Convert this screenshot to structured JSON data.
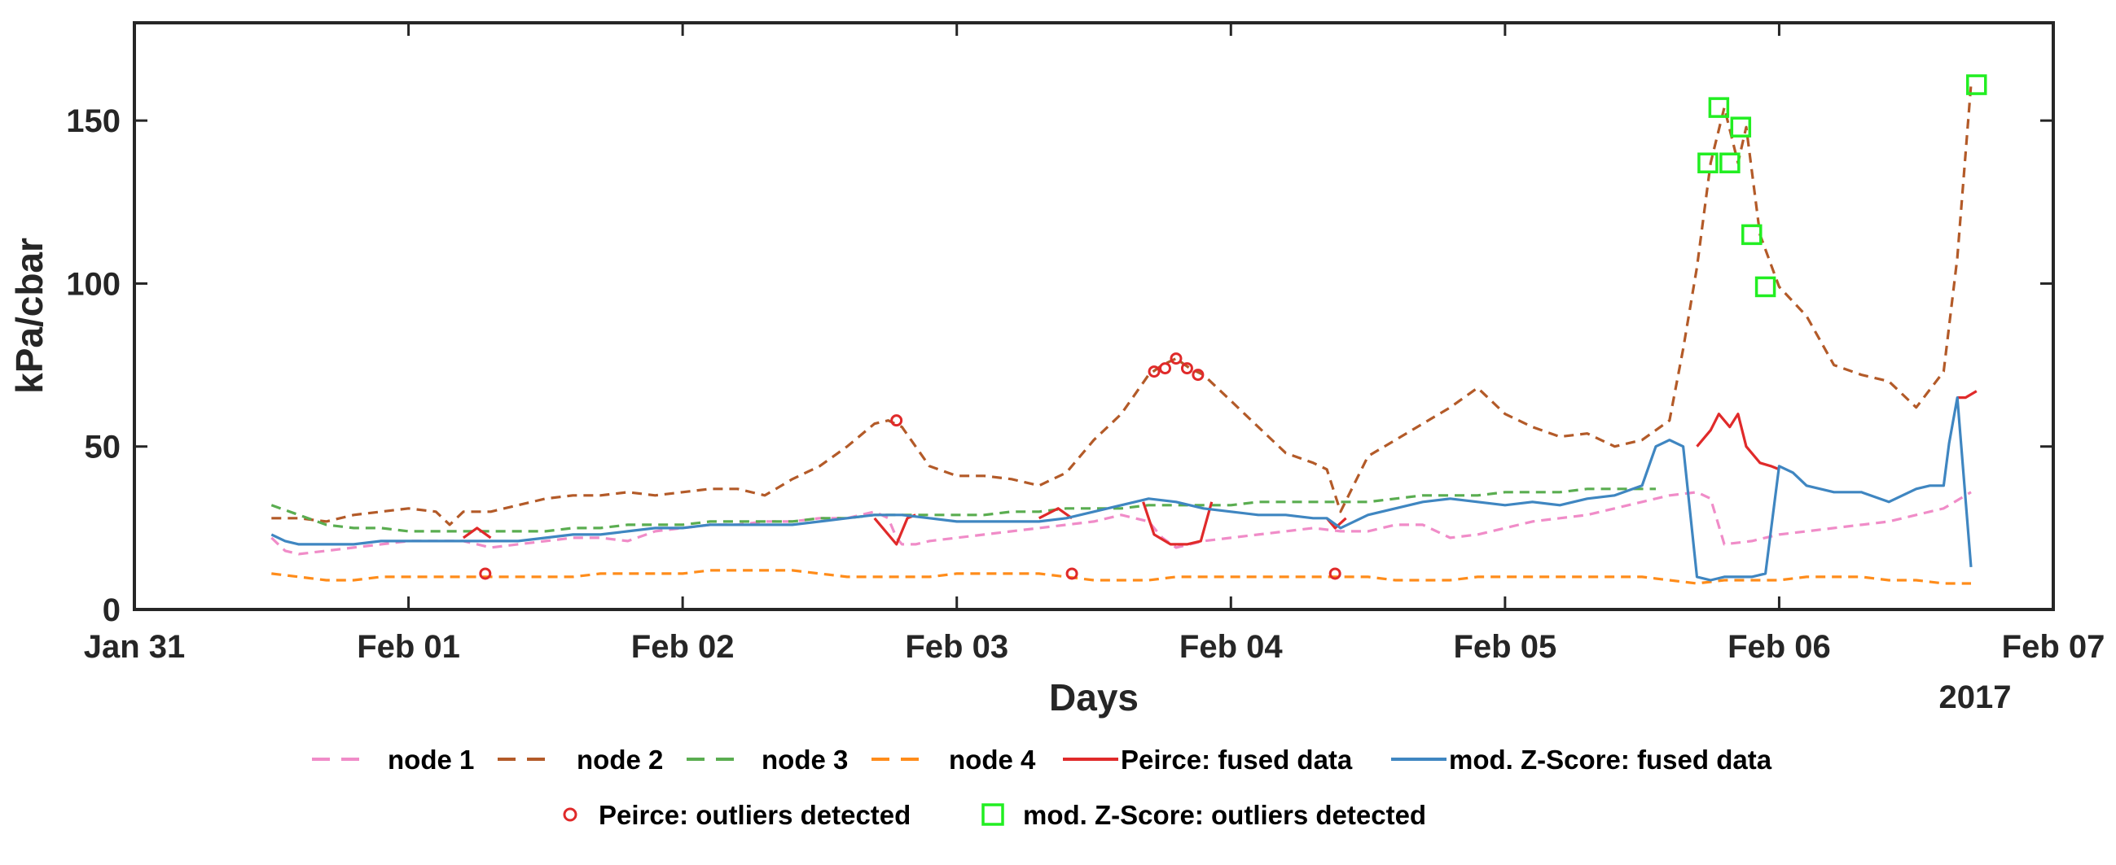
{
  "chart_data": {
    "type": "line",
    "xlabel": "Days",
    "ylabel": "kPa/cbar",
    "x_axis": {
      "type": "date",
      "range": [
        "2017-01-31",
        "2017-02-07"
      ],
      "tick_labels": [
        "Jan 31",
        "Feb 01",
        "Feb 02",
        "Feb 03",
        "Feb 04",
        "Feb 05",
        "Feb 06",
        "Feb 07"
      ],
      "year_label": "2017"
    },
    "y_axis": {
      "range": [
        0,
        180
      ],
      "ticks": [
        0,
        50,
        100,
        150
      ]
    },
    "grid": false,
    "legend": {
      "position": "bottom"
    },
    "series": [
      {
        "name": "node 1",
        "style": "dashed",
        "color": "#f08cc8",
        "x": [
          0.5,
          0.55,
          0.6,
          0.7,
          0.8,
          0.9,
          1.0,
          1.1,
          1.2,
          1.3,
          1.4,
          1.5,
          1.6,
          1.7,
          1.8,
          1.9,
          2.0,
          2.1,
          2.2,
          2.3,
          2.4,
          2.5,
          2.6,
          2.7,
          2.75,
          2.78,
          2.8,
          2.85,
          2.9,
          3.0,
          3.1,
          3.2,
          3.3,
          3.4,
          3.5,
          3.6,
          3.7,
          3.75,
          3.8,
          3.85,
          3.9,
          4.0,
          4.1,
          4.2,
          4.3,
          4.4,
          4.5,
          4.6,
          4.7,
          4.8,
          4.9,
          5.0,
          5.1,
          5.2,
          5.3,
          5.4,
          5.5,
          5.6,
          5.7,
          5.75,
          5.8,
          5.9,
          6.0,
          6.1,
          6.2,
          6.3,
          6.4,
          6.5,
          6.6,
          6.7
        ],
        "y": [
          22,
          18,
          17,
          18,
          19,
          20,
          21,
          21,
          21,
          19,
          20,
          21,
          22,
          22,
          21,
          24,
          25,
          26,
          26,
          27,
          27,
          28,
          28,
          30,
          28,
          22,
          20,
          20,
          21,
          22,
          23,
          24,
          25,
          26,
          27,
          29,
          27,
          22,
          19,
          20,
          21,
          22,
          23,
          24,
          25,
          24,
          24,
          26,
          26,
          22,
          23,
          25,
          27,
          28,
          29,
          31,
          33,
          35,
          36,
          34,
          20,
          21,
          23,
          24,
          25,
          26,
          27,
          29,
          31,
          36
        ]
      },
      {
        "name": "node 2",
        "style": "dashed",
        "color": "#b35a28",
        "x": [
          0.5,
          0.6,
          0.7,
          0.8,
          0.9,
          1.0,
          1.1,
          1.15,
          1.2,
          1.3,
          1.4,
          1.5,
          1.6,
          1.7,
          1.8,
          1.9,
          2.0,
          2.1,
          2.2,
          2.3,
          2.4,
          2.5,
          2.6,
          2.7,
          2.75,
          2.8,
          2.85,
          2.9,
          3.0,
          3.1,
          3.2,
          3.3,
          3.4,
          3.5,
          3.6,
          3.7,
          3.75,
          3.8,
          3.85,
          3.9,
          4.0,
          4.1,
          4.2,
          4.3,
          4.35,
          4.4,
          4.5,
          4.6,
          4.7,
          4.8,
          4.9,
          5.0,
          5.1,
          5.2,
          5.3,
          5.4,
          5.5,
          5.6,
          5.65,
          5.7,
          5.75,
          5.8,
          5.85,
          5.88,
          5.93,
          6.0,
          6.1,
          6.2,
          6.3,
          6.4,
          6.5,
          6.6,
          6.65,
          6.7
        ],
        "y": [
          28,
          28,
          27,
          29,
          30,
          31,
          30,
          26,
          30,
          30,
          32,
          34,
          35,
          35,
          36,
          35,
          36,
          37,
          37,
          35,
          40,
          44,
          50,
          57,
          58,
          56,
          50,
          44,
          41,
          41,
          40,
          38,
          42,
          52,
          60,
          72,
          75,
          77,
          74,
          72,
          64,
          56,
          48,
          45,
          43,
          30,
          47,
          52,
          57,
          62,
          68,
          60,
          56,
          53,
          54,
          50,
          52,
          58,
          80,
          105,
          137,
          154,
          137,
          148,
          115,
          99,
          90,
          75,
          72,
          70,
          62,
          73,
          108,
          161
        ]
      },
      {
        "name": "node 3",
        "style": "dashed",
        "color": "#5aad50",
        "x": [
          0.5,
          0.6,
          0.7,
          0.8,
          0.9,
          1.0,
          1.1,
          1.2,
          1.3,
          1.4,
          1.5,
          1.6,
          1.7,
          1.8,
          1.9,
          2.0,
          2.1,
          2.2,
          2.3,
          2.4,
          2.5,
          2.6,
          2.7,
          2.8,
          2.9,
          3.0,
          3.1,
          3.2,
          3.3,
          3.4,
          3.5,
          3.6,
          3.7,
          3.8,
          3.9,
          4.0,
          4.1,
          4.2,
          4.3,
          4.4,
          4.5,
          4.6,
          4.7,
          4.8,
          4.9,
          5.0,
          5.1,
          5.2,
          5.3,
          5.4,
          5.5,
          5.55
        ],
        "y": [
          32,
          29,
          26,
          25,
          25,
          24,
          24,
          24,
          24,
          24,
          24,
          25,
          25,
          26,
          26,
          26,
          27,
          27,
          27,
          27,
          28,
          28,
          29,
          29,
          29,
          29,
          29,
          30,
          30,
          31,
          31,
          31,
          32,
          32,
          32,
          32,
          33,
          33,
          33,
          33,
          33,
          34,
          35,
          35,
          35,
          36,
          36,
          36,
          37,
          37,
          37,
          37
        ]
      },
      {
        "name": "node 4",
        "style": "dashed",
        "color": "#ff8c1a",
        "x": [
          0.5,
          0.6,
          0.7,
          0.8,
          0.9,
          1.0,
          1.1,
          1.2,
          1.3,
          1.4,
          1.5,
          1.6,
          1.7,
          1.8,
          1.9,
          2.0,
          2.1,
          2.2,
          2.3,
          2.4,
          2.5,
          2.6,
          2.7,
          2.8,
          2.9,
          3.0,
          3.1,
          3.2,
          3.3,
          3.4,
          3.5,
          3.6,
          3.7,
          3.8,
          3.9,
          4.0,
          4.1,
          4.2,
          4.3,
          4.4,
          4.5,
          4.6,
          4.7,
          4.8,
          4.9,
          5.0,
          5.1,
          5.2,
          5.3,
          5.4,
          5.5,
          5.6,
          5.7,
          5.8,
          5.9,
          6.0,
          6.1,
          6.2,
          6.3,
          6.4,
          6.5,
          6.6,
          6.7
        ],
        "y": [
          11,
          10,
          9,
          9,
          10,
          10,
          10,
          10,
          10,
          10,
          10,
          10,
          11,
          11,
          11,
          11,
          12,
          12,
          12,
          12,
          11,
          10,
          10,
          10,
          10,
          11,
          11,
          11,
          11,
          10,
          9,
          9,
          9,
          10,
          10,
          10,
          10,
          10,
          10,
          10,
          10,
          9,
          9,
          9,
          10,
          10,
          10,
          10,
          10,
          10,
          10,
          9,
          8,
          9,
          9,
          9,
          10,
          10,
          10,
          9,
          9,
          8,
          8
        ]
      },
      {
        "name": "Peirce: fused data",
        "style": "solid",
        "color": "#e02a2a",
        "segments": [
          {
            "x": [
              1.2,
              1.25,
              1.3
            ],
            "y": [
              22,
              25,
              22
            ]
          },
          {
            "x": [
              2.7,
              2.78,
              2.82,
              2.85
            ],
            "y": [
              28,
              20,
              28,
              29
            ]
          },
          {
            "x": [
              3.3,
              3.37,
              3.42
            ],
            "y": [
              28,
              31,
              28
            ]
          },
          {
            "x": [
              3.68,
              3.72,
              3.78,
              3.84,
              3.89,
              3.93
            ],
            "y": [
              33,
              23,
              20,
              20,
              21,
              33
            ]
          },
          {
            "x": [
              4.35,
              4.38,
              4.42
            ],
            "y": [
              28,
              25,
              28
            ]
          },
          {
            "x": [
              5.7,
              5.75,
              5.78,
              5.82,
              5.85,
              5.88,
              5.93,
              5.97,
              6.0
            ],
            "y": [
              50,
              55,
              60,
              56,
              60,
              50,
              45,
              44,
              43
            ]
          },
          {
            "x": [
              6.65,
              6.68,
              6.72
            ],
            "y": [
              65,
              65,
              67
            ]
          }
        ]
      },
      {
        "name": "mod. Z-Score: fused data",
        "style": "solid",
        "color": "#3f86c1",
        "x": [
          0.5,
          0.55,
          0.6,
          0.7,
          0.8,
          0.9,
          1.0,
          1.1,
          1.2,
          1.3,
          1.4,
          1.5,
          1.6,
          1.7,
          1.8,
          1.9,
          2.0,
          2.1,
          2.2,
          2.3,
          2.4,
          2.5,
          2.6,
          2.7,
          2.8,
          2.9,
          3.0,
          3.1,
          3.2,
          3.3,
          3.4,
          3.5,
          3.6,
          3.7,
          3.8,
          3.9,
          4.0,
          4.1,
          4.2,
          4.3,
          4.35,
          4.4,
          4.5,
          4.6,
          4.7,
          4.8,
          4.9,
          5.0,
          5.1,
          5.2,
          5.3,
          5.4,
          5.5,
          5.55,
          5.6,
          5.65,
          5.7,
          5.75,
          5.8,
          5.85,
          5.9,
          5.95,
          6.0,
          6.05,
          6.1,
          6.2,
          6.3,
          6.4,
          6.5,
          6.55,
          6.6,
          6.62,
          6.65,
          6.7
        ],
        "y": [
          23,
          21,
          20,
          20,
          20,
          21,
          21,
          21,
          21,
          21,
          21,
          22,
          23,
          23,
          24,
          25,
          25,
          26,
          26,
          26,
          26,
          27,
          28,
          29,
          29,
          28,
          27,
          27,
          27,
          27,
          28,
          30,
          32,
          34,
          33,
          31,
          30,
          29,
          29,
          28,
          28,
          25,
          29,
          31,
          33,
          34,
          33,
          32,
          33,
          32,
          34,
          35,
          38,
          50,
          52,
          50,
          10,
          9,
          10,
          10,
          10,
          11,
          44,
          42,
          38,
          36,
          36,
          33,
          37,
          38,
          38,
          51,
          65,
          13
        ]
      }
    ],
    "outliers": [
      {
        "name": "Peirce: outliers detected",
        "marker": "circle",
        "color": "#e02a2a",
        "x": [
          1.28,
          2.78,
          3.42,
          3.72,
          3.76,
          3.8,
          3.84,
          3.88,
          4.38
        ],
        "y": [
          11,
          58,
          11,
          73,
          74,
          77,
          74,
          72,
          11
        ]
      },
      {
        "name": "mod. Z-Score: outliers detected",
        "marker": "square",
        "color": "#22ee22",
        "x": [
          5.74,
          5.78,
          5.82,
          5.86,
          5.9,
          5.95,
          6.72
        ],
        "y": [
          137,
          154,
          137,
          148,
          115,
          99,
          161
        ]
      }
    ]
  }
}
